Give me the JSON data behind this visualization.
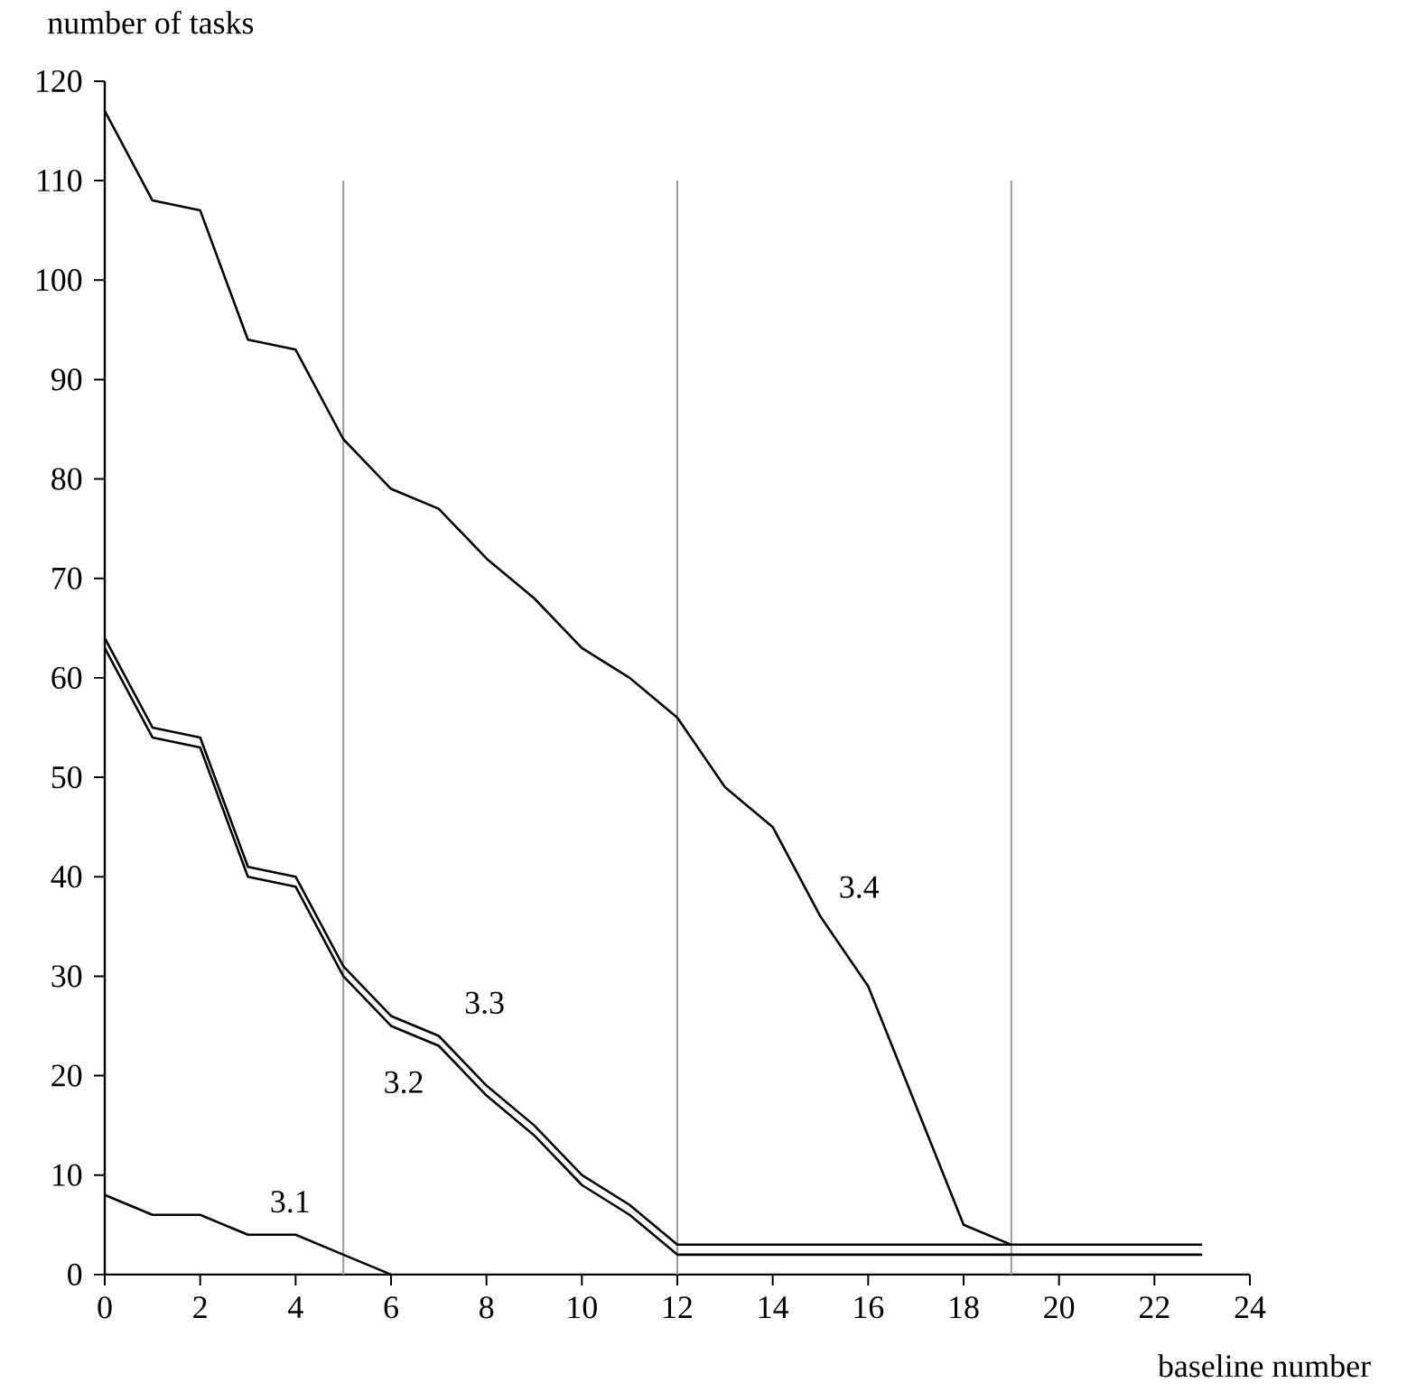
{
  "chart_data": {
    "type": "line",
    "xlabel": "baseline number",
    "ylabel": "number of tasks",
    "xlim": [
      0,
      24
    ],
    "ylim": [
      0,
      120
    ],
    "xticks": [
      0,
      2,
      4,
      6,
      8,
      10,
      12,
      14,
      16,
      18,
      20,
      22,
      24
    ],
    "yticks": [
      0,
      10,
      20,
      30,
      40,
      50,
      60,
      70,
      80,
      90,
      100,
      110,
      120
    ],
    "grid": false,
    "marker": "none",
    "line_style": "solid",
    "series": [
      {
        "name": "3.1",
        "color": "#000000",
        "x": [
          0,
          1,
          2,
          3,
          4,
          5,
          6
        ],
        "values": [
          8,
          6,
          6,
          4,
          4,
          2,
          0
        ]
      },
      {
        "name": "3.2",
        "color": "#000000",
        "x": [
          0,
          1,
          2,
          3,
          4,
          5,
          6,
          7,
          8,
          9,
          10,
          11,
          12,
          13,
          14,
          15,
          16,
          17,
          18,
          19,
          20,
          21,
          22,
          23
        ],
        "values": [
          63,
          54,
          53,
          40,
          39,
          30,
          25,
          23,
          18,
          14,
          9,
          6,
          2,
          2,
          2,
          2,
          2,
          2,
          2,
          2,
          2,
          2,
          2,
          2
        ]
      },
      {
        "name": "3.3",
        "color": "#000000",
        "x": [
          0,
          1,
          2,
          3,
          4,
          5,
          6,
          7,
          8,
          9,
          10,
          11,
          12,
          13,
          14,
          15,
          16,
          17,
          18,
          19,
          20,
          21,
          22,
          23
        ],
        "values": [
          64,
          55,
          54,
          41,
          40,
          31,
          26,
          24,
          19,
          15,
          10,
          7,
          3,
          3,
          3,
          3,
          3,
          3,
          3,
          3,
          3,
          3,
          3,
          3
        ]
      },
      {
        "name": "3.4",
        "color": "#000000",
        "x": [
          0,
          1,
          2,
          3,
          4,
          5,
          6,
          7,
          8,
          9,
          10,
          11,
          12,
          13,
          14,
          15,
          16,
          17,
          18,
          19
        ],
        "values": [
          117,
          108,
          107,
          94,
          93,
          84,
          79,
          77,
          72,
          68,
          63,
          60,
          56,
          49,
          45,
          36,
          29,
          17,
          5,
          3
        ]
      }
    ],
    "ref_lines": [
      {
        "axis": "x",
        "value": 5,
        "color": "#999999"
      },
      {
        "axis": "x",
        "value": 12,
        "color": "#999999"
      },
      {
        "axis": "x",
        "value": 19,
        "color": "#999999"
      }
    ]
  }
}
